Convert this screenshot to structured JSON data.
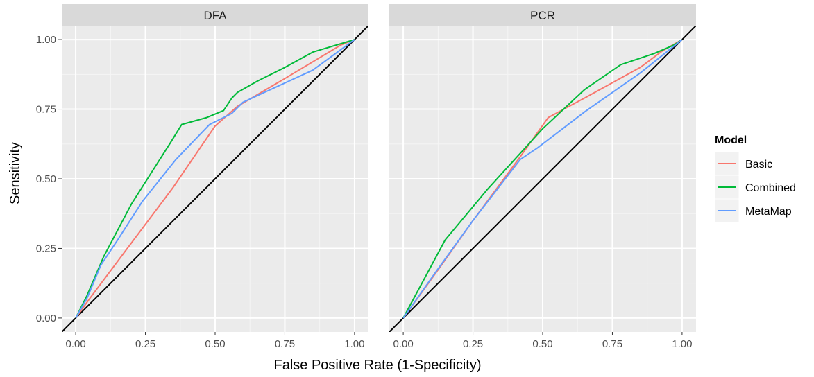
{
  "chart_data": {
    "type": "line",
    "xlabel": "False Positive Rate (1-Specificity)",
    "ylabel": "Sensitivity",
    "xlim": [
      -0.05,
      1.05
    ],
    "ylim": [
      -0.05,
      1.05
    ],
    "x_ticks": [
      0,
      0.25,
      0.5,
      0.75,
      1
    ],
    "y_ticks": [
      0,
      0.25,
      0.5,
      0.75,
      1
    ],
    "x_tick_labels": [
      "0.00",
      "0.25",
      "0.50",
      "0.75",
      "1.00"
    ],
    "y_tick_labels": [
      "0.00",
      "0.25",
      "0.50",
      "0.75",
      "1.00"
    ],
    "grid": true,
    "legend": {
      "title": "Model",
      "position": "right",
      "entries": [
        {
          "name": "Basic",
          "color": "#F8766D"
        },
        {
          "name": "Combined",
          "color": "#00BA38"
        },
        {
          "name": "MetaMap",
          "color": "#619CFF"
        }
      ]
    },
    "reference_line": {
      "x": [
        -0.05,
        1.05
      ],
      "y": [
        -0.05,
        1.05
      ],
      "color": "#000000"
    },
    "panels": [
      {
        "title": "DFA",
        "series": [
          {
            "name": "Basic",
            "color": "#F8766D",
            "points": [
              [
                0,
                0
              ],
              [
                0.05,
                0.07
              ],
              [
                0.2,
                0.27
              ],
              [
                0.35,
                0.47
              ],
              [
                0.5,
                0.69
              ],
              [
                0.58,
                0.76
              ],
              [
                0.75,
                0.86
              ],
              [
                0.95,
                0.98
              ],
              [
                1,
                1
              ]
            ]
          },
          {
            "name": "Combined",
            "color": "#00BA38",
            "points": [
              [
                0,
                0
              ],
              [
                0.04,
                0.08
              ],
              [
                0.1,
                0.22
              ],
              [
                0.2,
                0.41
              ],
              [
                0.27,
                0.52
              ],
              [
                0.34,
                0.63
              ],
              [
                0.38,
                0.695
              ],
              [
                0.47,
                0.72
              ],
              [
                0.53,
                0.745
              ],
              [
                0.56,
                0.79
              ],
              [
                0.58,
                0.81
              ],
              [
                0.65,
                0.85
              ],
              [
                0.75,
                0.9
              ],
              [
                0.85,
                0.955
              ],
              [
                1,
                1
              ]
            ]
          },
          {
            "name": "MetaMap",
            "color": "#619CFF",
            "points": [
              [
                0,
                0
              ],
              [
                0.04,
                0.07
              ],
              [
                0.09,
                0.19
              ],
              [
                0.15,
                0.28
              ],
              [
                0.24,
                0.42
              ],
              [
                0.36,
                0.57
              ],
              [
                0.48,
                0.695
              ],
              [
                0.56,
                0.735
              ],
              [
                0.6,
                0.775
              ],
              [
                0.85,
                0.89
              ],
              [
                1,
                1
              ]
            ]
          }
        ]
      },
      {
        "title": "PCR",
        "series": [
          {
            "name": "Basic",
            "color": "#F8766D",
            "points": [
              [
                0,
                0
              ],
              [
                0.13,
                0.18
              ],
              [
                0.25,
                0.35
              ],
              [
                0.42,
                0.58
              ],
              [
                0.52,
                0.72
              ],
              [
                0.65,
                0.79
              ],
              [
                0.85,
                0.9
              ],
              [
                0.93,
                0.96
              ],
              [
                1,
                1
              ]
            ]
          },
          {
            "name": "Combined",
            "color": "#00BA38",
            "points": [
              [
                0,
                0
              ],
              [
                0.15,
                0.28
              ],
              [
                0.3,
                0.46
              ],
              [
                0.5,
                0.68
              ],
              [
                0.65,
                0.82
              ],
              [
                0.78,
                0.91
              ],
              [
                0.9,
                0.95
              ],
              [
                0.97,
                0.98
              ],
              [
                1,
                1
              ]
            ]
          },
          {
            "name": "MetaMap",
            "color": "#619CFF",
            "points": [
              [
                0,
                0
              ],
              [
                0.12,
                0.17
              ],
              [
                0.25,
                0.35
              ],
              [
                0.42,
                0.57
              ],
              [
                0.48,
                0.61
              ],
              [
                0.65,
                0.74
              ],
              [
                0.85,
                0.88
              ],
              [
                0.95,
                0.96
              ],
              [
                1,
                1
              ]
            ]
          }
        ]
      }
    ]
  }
}
